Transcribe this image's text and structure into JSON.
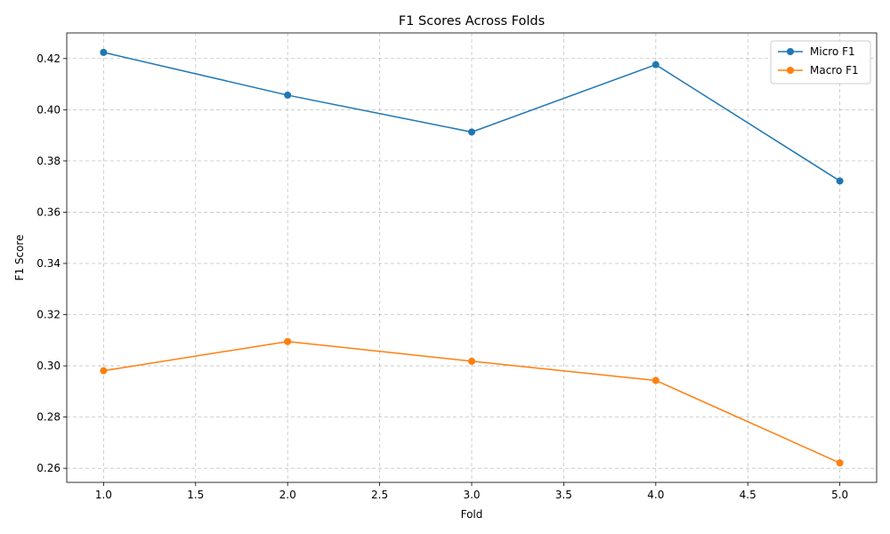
{
  "chart_data": {
    "type": "line",
    "title": "F1 Scores Across Folds",
    "xlabel": "Fold",
    "ylabel": "F1 Score",
    "x": [
      1,
      2,
      3,
      4,
      5
    ],
    "xlim": [
      0.8,
      5.2
    ],
    "ylim": [
      0.2545,
      0.43
    ],
    "xticks": [
      1.0,
      1.5,
      2.0,
      2.5,
      3.0,
      3.5,
      4.0,
      4.5,
      5.0
    ],
    "xtick_labels": [
      "1.0",
      "1.5",
      "2.0",
      "2.5",
      "3.0",
      "3.5",
      "4.0",
      "4.5",
      "5.0"
    ],
    "yticks": [
      0.26,
      0.28,
      0.3,
      0.32,
      0.34,
      0.36,
      0.38,
      0.4,
      0.42
    ],
    "ytick_labels": [
      "0.26",
      "0.28",
      "0.30",
      "0.32",
      "0.34",
      "0.36",
      "0.38",
      "0.40",
      "0.42"
    ],
    "grid": true,
    "legend_position": "top-right",
    "series": [
      {
        "name": "Micro F1",
        "color": "#1f77b4",
        "marker": "circle",
        "values": [
          0.4224,
          0.4057,
          0.3913,
          0.4176,
          0.3722
        ]
      },
      {
        "name": "Macro F1",
        "color": "#ff7f0e",
        "marker": "circle",
        "values": [
          0.2981,
          0.3095,
          0.3018,
          0.2943,
          0.2621
        ]
      }
    ]
  }
}
